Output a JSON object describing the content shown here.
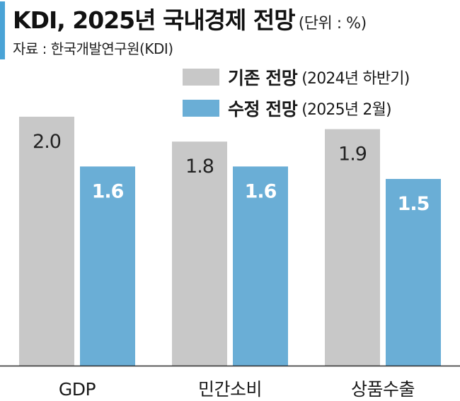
{
  "header": {
    "title": "KDI, 2025년 국내경제 전망",
    "unit": "(단위 : %)",
    "source": "자료 : 한국개발연구원(KDI)"
  },
  "legend": [
    {
      "name": "기존 전망",
      "note": "(2024년 하반기)",
      "color": "#c8c8c8"
    },
    {
      "name": "수정 전망",
      "note": "(2025년 2월)",
      "color": "#6aaed6"
    }
  ],
  "chart_data": {
    "type": "bar",
    "categories": [
      "GDP",
      "민간소비",
      "상품수출"
    ],
    "series": [
      {
        "name": "기존 전망",
        "values": [
          2.0,
          1.8,
          1.9
        ],
        "labels": [
          "2.0",
          "1.8",
          "1.9"
        ]
      },
      {
        "name": "수정 전망",
        "values": [
          1.6,
          1.6,
          1.5
        ],
        "labels": [
          "1.6",
          "1.6",
          "1.5"
        ]
      }
    ],
    "ylim": [
      0,
      2.0
    ],
    "grid": false,
    "legend_position": "top-right",
    "title": "KDI, 2025년 국내경제 전망",
    "xlabel": "",
    "ylabel": ""
  }
}
